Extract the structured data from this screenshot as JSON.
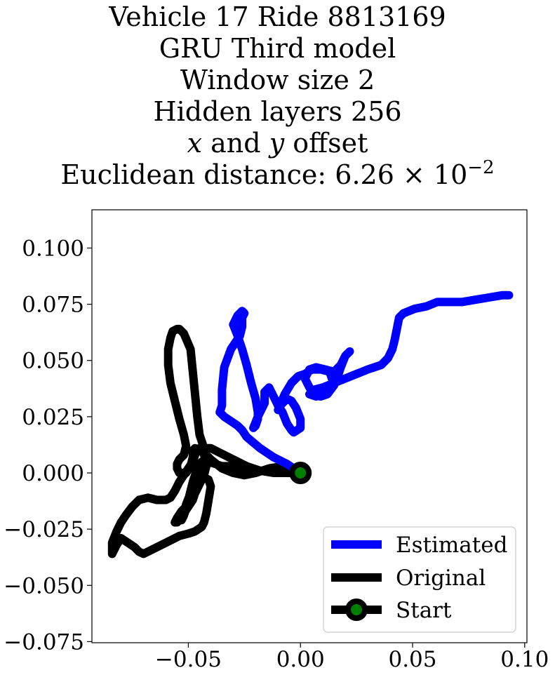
{
  "chart_data": {
    "type": "line",
    "title_lines": [
      "Vehicle 17 Ride 8813169",
      "GRU Third model",
      "Window size 2",
      "Hidden layers 256"
    ],
    "title_offset": {
      "var_x": "x",
      "and": " and ",
      "var_y": "y",
      "suffix": " offset"
    },
    "title_distance": {
      "prefix": "Euclidean distance: 6.26",
      "times": " × 10",
      "exponent": "−2"
    },
    "xlabel": "",
    "ylabel": "",
    "xlim": [
      -0.093,
      0.101
    ],
    "ylim": [
      -0.0755,
      0.117
    ],
    "xticks": [
      -0.05,
      0.0,
      0.05,
      0.1
    ],
    "xtick_labels": [
      "−0.05",
      "0.00",
      "0.05",
      "0.10"
    ],
    "yticks": [
      0.1,
      0.075,
      0.05,
      0.025,
      0.0,
      -0.025,
      -0.05,
      -0.075
    ],
    "ytick_labels": [
      "0.100",
      "0.075",
      "0.050",
      "0.025",
      "0.000",
      "−0.025",
      "−0.050",
      "−0.075"
    ],
    "grid": false,
    "legend_position": "lower-right",
    "series": [
      {
        "name": "Estimated",
        "color": "#0000ff",
        "x": [
          0.0,
          -0.006,
          -0.012,
          -0.018,
          -0.024,
          -0.026,
          -0.028,
          -0.034,
          -0.036,
          -0.035,
          -0.035,
          -0.034,
          -0.031,
          -0.027,
          -0.026,
          -0.026,
          -0.025,
          -0.026,
          -0.028,
          -0.03,
          -0.028,
          -0.026,
          -0.024,
          -0.022,
          -0.02,
          -0.019,
          -0.019,
          -0.02,
          -0.021,
          -0.019,
          -0.016,
          -0.016,
          -0.014,
          -0.012,
          -0.01,
          -0.008,
          -0.006,
          -0.004,
          -0.003,
          0.0,
          0.0,
          -0.002,
          -0.004,
          -0.006,
          -0.009,
          -0.01,
          -0.007,
          -0.004,
          -0.001,
          0.002,
          0.005,
          0.009,
          0.013,
          0.015,
          0.012,
          0.009,
          0.006,
          0.004,
          0.002,
          0.004,
          0.007,
          0.011,
          0.015,
          0.018,
          0.02,
          0.022,
          0.02,
          0.018,
          0.016,
          0.013,
          0.01,
          0.007,
          0.004,
          0.006,
          0.01,
          0.015,
          0.02,
          0.025,
          0.03,
          0.036,
          0.039,
          0.041,
          0.042,
          0.043,
          0.044,
          0.046,
          0.051,
          0.056,
          0.061,
          0.066,
          0.072,
          0.078,
          0.084,
          0.09,
          0.093
        ],
        "y": [
          0.0,
          0.004,
          0.007,
          0.011,
          0.016,
          0.019,
          0.021,
          0.025,
          0.027,
          0.03,
          0.037,
          0.047,
          0.055,
          0.061,
          0.065,
          0.069,
          0.071,
          0.072,
          0.07,
          0.066,
          0.061,
          0.055,
          0.048,
          0.04,
          0.033,
          0.027,
          0.024,
          0.021,
          0.02,
          0.025,
          0.031,
          0.036,
          0.038,
          0.034,
          0.03,
          0.027,
          0.022,
          0.019,
          0.018,
          0.02,
          0.024,
          0.029,
          0.032,
          0.033,
          0.03,
          0.028,
          0.035,
          0.04,
          0.043,
          0.044,
          0.046,
          0.046,
          0.045,
          0.039,
          0.035,
          0.034,
          0.035,
          0.038,
          0.042,
          0.046,
          0.047,
          0.046,
          0.045,
          0.048,
          0.052,
          0.054,
          0.052,
          0.047,
          0.041,
          0.038,
          0.035,
          0.034,
          0.035,
          0.037,
          0.038,
          0.04,
          0.042,
          0.044,
          0.046,
          0.048,
          0.051,
          0.055,
          0.059,
          0.064,
          0.069,
          0.071,
          0.073,
          0.074,
          0.076,
          0.076,
          0.076,
          0.077,
          0.078,
          0.079,
          0.079
        ]
      },
      {
        "name": "Original",
        "color": "#000000",
        "x": [
          0.0,
          -0.006,
          -0.012,
          -0.018,
          -0.024,
          -0.03,
          -0.036,
          -0.04,
          -0.043,
          -0.045,
          -0.046,
          -0.047,
          -0.048,
          -0.049,
          -0.052,
          -0.054,
          -0.055,
          -0.057,
          -0.058,
          -0.059,
          -0.059,
          -0.058,
          -0.056,
          -0.054,
          -0.052,
          -0.051,
          -0.052,
          -0.054,
          -0.055,
          -0.055,
          -0.054,
          -0.051,
          -0.049,
          -0.048,
          -0.048,
          -0.047,
          -0.044,
          -0.04,
          -0.035,
          -0.03,
          -0.025,
          -0.02,
          -0.014,
          -0.008,
          -0.002,
          0.0,
          -0.007,
          -0.012,
          -0.016,
          -0.02,
          -0.024,
          -0.027,
          -0.03,
          -0.035,
          -0.038,
          -0.041,
          -0.043,
          -0.044,
          -0.045,
          -0.046,
          -0.047,
          -0.048,
          -0.049,
          -0.051,
          -0.053,
          -0.055,
          -0.056,
          -0.055,
          -0.053,
          -0.052,
          -0.05,
          -0.048,
          -0.047,
          -0.045,
          -0.043,
          -0.042,
          -0.042,
          -0.043,
          -0.044,
          -0.045,
          -0.046,
          -0.047,
          -0.048,
          -0.05,
          -0.052,
          -0.054,
          -0.056,
          -0.058,
          -0.06,
          -0.064,
          -0.068,
          -0.072,
          -0.075,
          -0.078,
          -0.08,
          -0.082,
          -0.084,
          -0.084,
          -0.082,
          -0.08,
          -0.077,
          -0.074,
          -0.072,
          -0.07,
          -0.066,
          -0.062,
          -0.058,
          -0.054,
          -0.05,
          -0.047,
          -0.044,
          -0.043,
          -0.042,
          -0.041,
          -0.04,
          -0.041,
          -0.043,
          -0.045,
          -0.047,
          -0.049,
          -0.051,
          -0.052,
          -0.053,
          -0.053,
          -0.052,
          -0.051,
          -0.05,
          -0.049,
          -0.048,
          -0.047,
          -0.046,
          -0.045,
          -0.044
        ],
        "y": [
          0.0,
          0.0,
          0.0,
          0.001,
          0.003,
          0.006,
          0.009,
          0.011,
          0.011,
          0.017,
          0.025,
          0.035,
          0.045,
          0.055,
          0.062,
          0.064,
          0.064,
          0.063,
          0.06,
          0.055,
          0.048,
          0.04,
          0.032,
          0.024,
          0.017,
          0.012,
          0.008,
          0.006,
          0.004,
          0.002,
          0.0,
          0.0,
          0.003,
          0.007,
          0.01,
          0.011,
          0.01,
          0.006,
          0.002,
          0.0,
          -0.001,
          0.0,
          0.002,
          0.003,
          0.0,
          0.0,
          0.0,
          0.001,
          0.001,
          0.001,
          0.002,
          0.003,
          0.003,
          0.003,
          0.004,
          0.005,
          0.005,
          0.005,
          0.003,
          0.0,
          -0.005,
          -0.01,
          -0.012,
          -0.015,
          -0.017,
          -0.02,
          -0.022,
          -0.022,
          -0.02,
          -0.018,
          -0.015,
          -0.012,
          -0.009,
          -0.005,
          -0.001,
          0.003,
          0.006,
          0.008,
          0.011,
          0.011,
          0.01,
          0.008,
          0.005,
          0.002,
          -0.001,
          -0.004,
          -0.008,
          -0.011,
          -0.012,
          -0.012,
          -0.011,
          -0.012,
          -0.015,
          -0.019,
          -0.022,
          -0.026,
          -0.031,
          -0.036,
          -0.032,
          -0.029,
          -0.031,
          -0.033,
          -0.035,
          -0.036,
          -0.034,
          -0.032,
          -0.03,
          -0.028,
          -0.027,
          -0.026,
          -0.024,
          -0.022,
          -0.018,
          -0.012,
          -0.006,
          -0.003,
          -0.002,
          -0.003,
          -0.005,
          -0.009,
          -0.014,
          -0.018,
          -0.021,
          -0.021,
          -0.019,
          -0.016,
          -0.012,
          -0.008,
          -0.004,
          -0.001,
          0.002,
          0.004,
          0.005
        ]
      }
    ],
    "start_marker": {
      "name": "Start",
      "x": 0.0,
      "y": 0.0,
      "face_color": "#008000",
      "edge_color": "#000000"
    },
    "legend_entries": [
      "Estimated",
      "Original",
      "Start"
    ]
  }
}
